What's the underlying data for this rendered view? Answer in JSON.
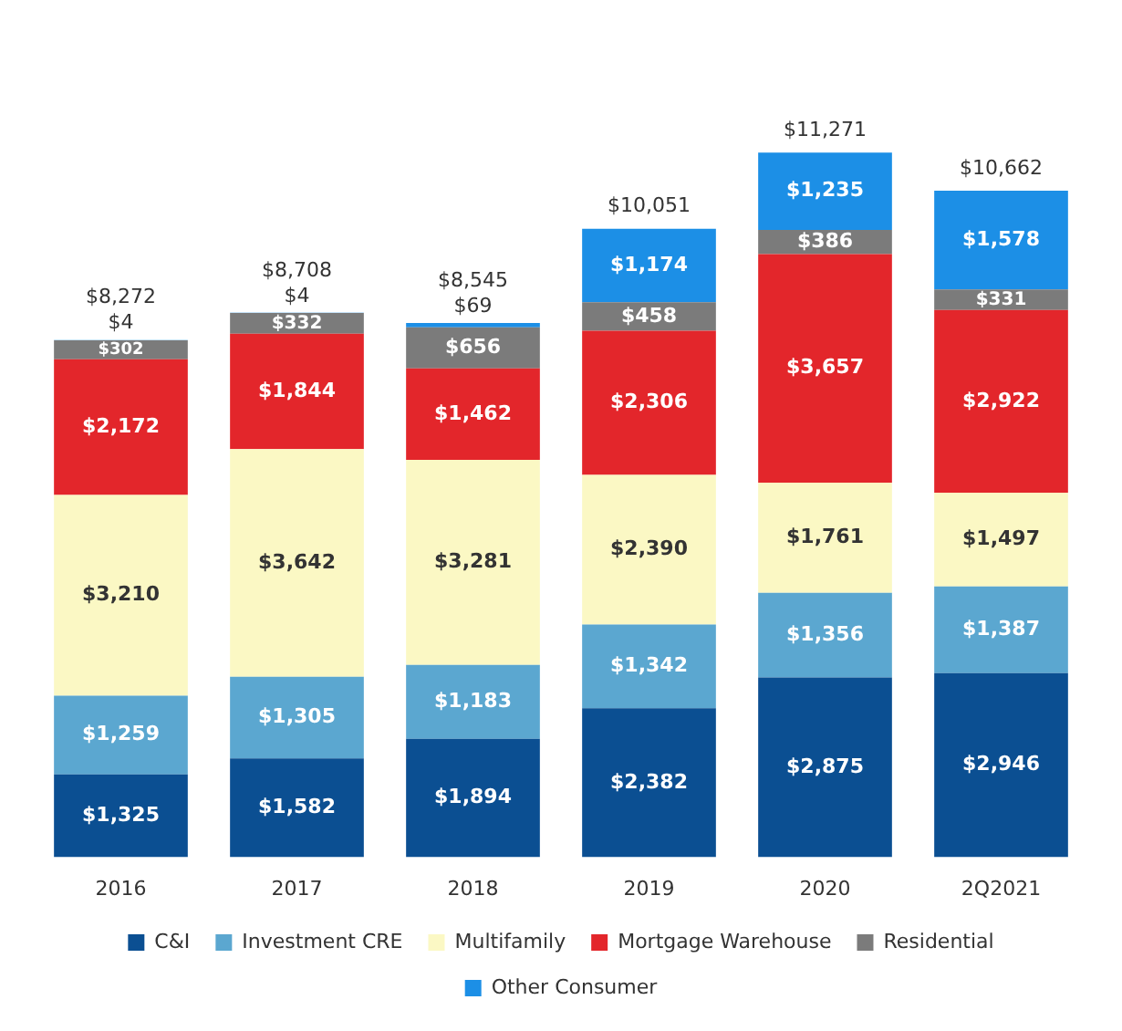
{
  "chart_data": {
    "type": "bar",
    "stacked": true,
    "legend": "bottom",
    "grid": false,
    "categories": [
      "2016",
      "2017",
      "2018",
      "2019",
      "2020",
      "2Q2021"
    ],
    "series": [
      {
        "name": "C&I",
        "color": "#0b4f92",
        "values": [
          1325,
          1582,
          1894,
          2382,
          2875,
          2946
        ],
        "value_labels": [
          "$1,325",
          "$1,582",
          "$1,894",
          "$2,382",
          "$2,875",
          "$2,946"
        ]
      },
      {
        "name": "Investment CRE",
        "color": "#5ba7d0",
        "values": [
          1259,
          1305,
          1183,
          1342,
          1356,
          1387
        ],
        "value_labels": [
          "$1,259",
          "$1,305",
          "$1,183",
          "$1,342",
          "$1,356",
          "$1,387"
        ]
      },
      {
        "name": "Multifamily",
        "color": "#fbf8c4",
        "values": [
          3210,
          3642,
          3281,
          2390,
          1761,
          1497
        ],
        "value_labels": [
          "$3,210",
          "$3,642",
          "$3,281",
          "$2,390",
          "$1,761",
          "$1,497"
        ]
      },
      {
        "name": "Mortgage Warehouse",
        "color": "#e3262b",
        "values": [
          2172,
          1844,
          1462,
          2306,
          3657,
          2922
        ],
        "value_labels": [
          "$2,172",
          "$1,844",
          "$1,462",
          "$2,306",
          "$3,657",
          "$2,922"
        ]
      },
      {
        "name": "Residential",
        "color": "#7b7b7b",
        "values": [
          302,
          332,
          656,
          458,
          386,
          331
        ],
        "value_labels": [
          "$302",
          "$332",
          "$656",
          "$458",
          "$386",
          "$331"
        ]
      },
      {
        "name": "Other Consumer",
        "color": "#1c8fe6",
        "values": [
          4,
          4,
          69,
          1174,
          1235,
          1578
        ],
        "value_labels": [
          "$4",
          "$4",
          "$69",
          "$1,174",
          "$1,235",
          "$1,578"
        ]
      }
    ],
    "totals": [
      "$8,272",
      "$8,708",
      "$8,545",
      "$10,051",
      "$11,271",
      "$10,662"
    ]
  }
}
